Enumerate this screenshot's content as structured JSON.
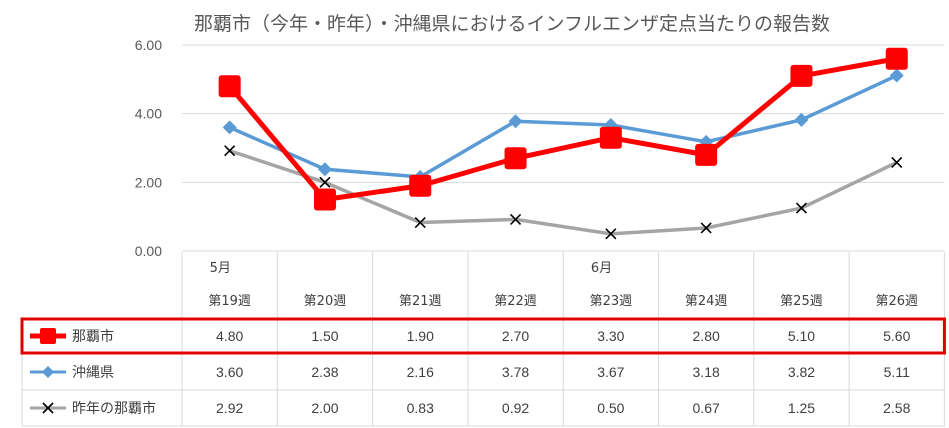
{
  "chart_data": {
    "type": "line",
    "title": "那覇市（今年・昨年）・沖縄県におけるインフルエンザ定点当たりの報告数",
    "month_labels": [
      "5月",
      "",
      "",
      "",
      "6月",
      "",
      "",
      ""
    ],
    "categories": [
      "第19週",
      "第20週",
      "第21週",
      "第22週",
      "第23週",
      "第24週",
      "第25週",
      "第26週"
    ],
    "ylim": [
      0,
      6
    ],
    "yticks": [
      "0.00",
      "2.00",
      "4.00",
      "6.00"
    ],
    "grid": true,
    "legend": "data-table",
    "series": [
      {
        "name": "那覇市",
        "color": "#ff0000",
        "marker": "square",
        "values": [
          4.8,
          1.5,
          1.9,
          2.7,
          3.3,
          2.8,
          5.1,
          5.6
        ],
        "labels": [
          "4.80",
          "1.50",
          "1.90",
          "2.70",
          "3.30",
          "2.80",
          "5.10",
          "5.60"
        ]
      },
      {
        "name": "沖縄県",
        "color": "#5b9bd5",
        "marker": "diamond",
        "values": [
          3.6,
          2.38,
          2.16,
          3.78,
          3.67,
          3.18,
          3.82,
          5.11
        ],
        "labels": [
          "3.60",
          "2.38",
          "2.16",
          "3.78",
          "3.67",
          "3.18",
          "3.82",
          "5.11"
        ]
      },
      {
        "name": "昨年の那覇市",
        "color": "#a5a5a5",
        "marker": "x",
        "values": [
          2.92,
          2.0,
          0.83,
          0.92,
          0.5,
          0.67,
          1.25,
          2.58
        ],
        "labels": [
          "2.92",
          "2.00",
          "0.83",
          "0.92",
          "0.50",
          "0.67",
          "1.25",
          "2.58"
        ]
      }
    ],
    "highlight_color": "#e00000"
  }
}
